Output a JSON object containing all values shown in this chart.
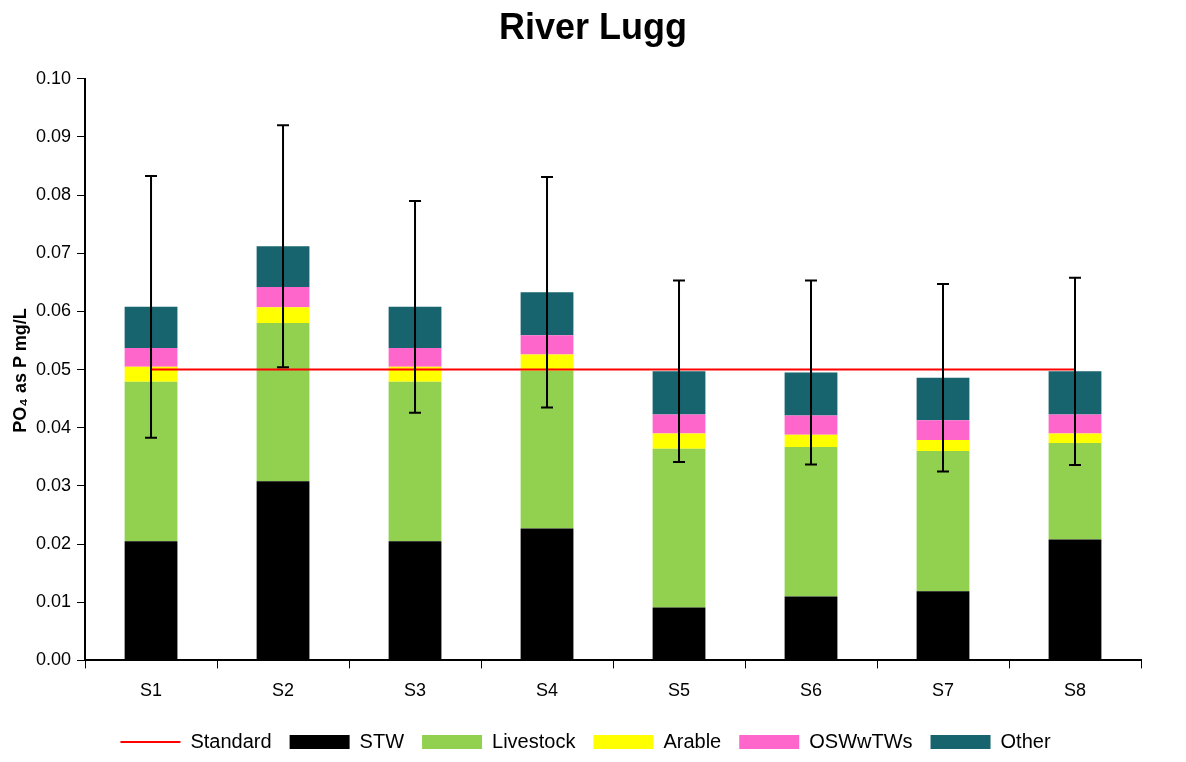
{
  "chart_data": {
    "type": "bar",
    "title": "River Lugg",
    "ylabel": "PO₄ as P mg/L",
    "stacked": true,
    "legend": "bottom",
    "grid": false,
    "categories": [
      "S1",
      "S2",
      "S3",
      "S4",
      "S5",
      "S6",
      "S7",
      "S8"
    ],
    "ylim": [
      0,
      0.1
    ],
    "yticks": [
      {
        "value": 0,
        "label": "0.00"
      },
      {
        "value": 0.01,
        "label": "0.01"
      },
      {
        "value": 0.02,
        "label": "0.02"
      },
      {
        "value": 0.03,
        "label": "0.03"
      },
      {
        "value": 0.04,
        "label": "0.04"
      },
      {
        "value": 0.05,
        "label": "0.05"
      },
      {
        "value": 0.06,
        "label": "0.06"
      },
      {
        "value": 0.07,
        "label": "0.07"
      },
      {
        "value": 0.08,
        "label": "0.08"
      },
      {
        "value": 0.09,
        "label": "0.09"
      },
      {
        "value": 0.1,
        "label": "0.10"
      }
    ],
    "series": [
      {
        "name": "STW",
        "color": "#000000",
        "values": [
          0.0205,
          0.0308,
          0.0205,
          0.0227,
          0.0091,
          0.011,
          0.0119,
          0.0208
        ]
      },
      {
        "name": "Livestock",
        "color": "#92d050",
        "values": [
          0.0274,
          0.0272,
          0.0274,
          0.0271,
          0.0273,
          0.0257,
          0.0241,
          0.0166
        ]
      },
      {
        "name": "Arable",
        "color": "#ffff00",
        "values": [
          0.0026,
          0.0027,
          0.0026,
          0.0028,
          0.0026,
          0.0021,
          0.0019,
          0.0016
        ]
      },
      {
        "name": "OSWwTWs",
        "color": "#ff66cc",
        "values": [
          0.0032,
          0.0035,
          0.0032,
          0.0033,
          0.0033,
          0.0033,
          0.0034,
          0.0033
        ]
      },
      {
        "name": "Other",
        "color": "#17646e",
        "values": [
          0.0071,
          0.007,
          0.0071,
          0.0074,
          0.0074,
          0.0074,
          0.0073,
          0.0074
        ],
        "errors": [
          0.0225,
          0.0208,
          0.0182,
          0.0198,
          0.0156,
          0.0158,
          0.0161,
          0.0161
        ]
      },
      {
        "name": "Standard",
        "type": "line",
        "color": "#ff0000",
        "marker": "none",
        "values": [
          0.05,
          0.05,
          0.05,
          0.05,
          0.05,
          0.05,
          0.05,
          0.05
        ]
      }
    ]
  }
}
